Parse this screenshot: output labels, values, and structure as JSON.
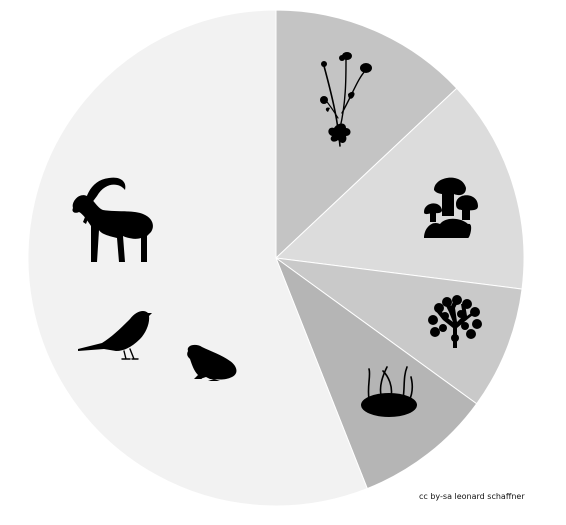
{
  "chart_data": {
    "type": "pie",
    "start_angle_deg": 0,
    "direction": "clockwise",
    "slices": [
      {
        "icon": "flower-icon",
        "value": 13,
        "color": "#c4c4c4"
      },
      {
        "icon": "mushroom-icon",
        "value": 14,
        "color": "#dcdcdc"
      },
      {
        "icon": "lichen-icon",
        "value": 8,
        "color": "#c9c9c9"
      },
      {
        "icon": "moss-icon",
        "value": 9,
        "color": "#b5b5b5"
      },
      {
        "icon": "animals-icon",
        "value": 56,
        "color": "#f2f2f2",
        "animal_icons": [
          "ibex-icon",
          "bird-icon",
          "frog-icon"
        ]
      }
    ],
    "stroke_color": "#ffffff"
  },
  "credit": "cc by-sa leonard schaffner"
}
